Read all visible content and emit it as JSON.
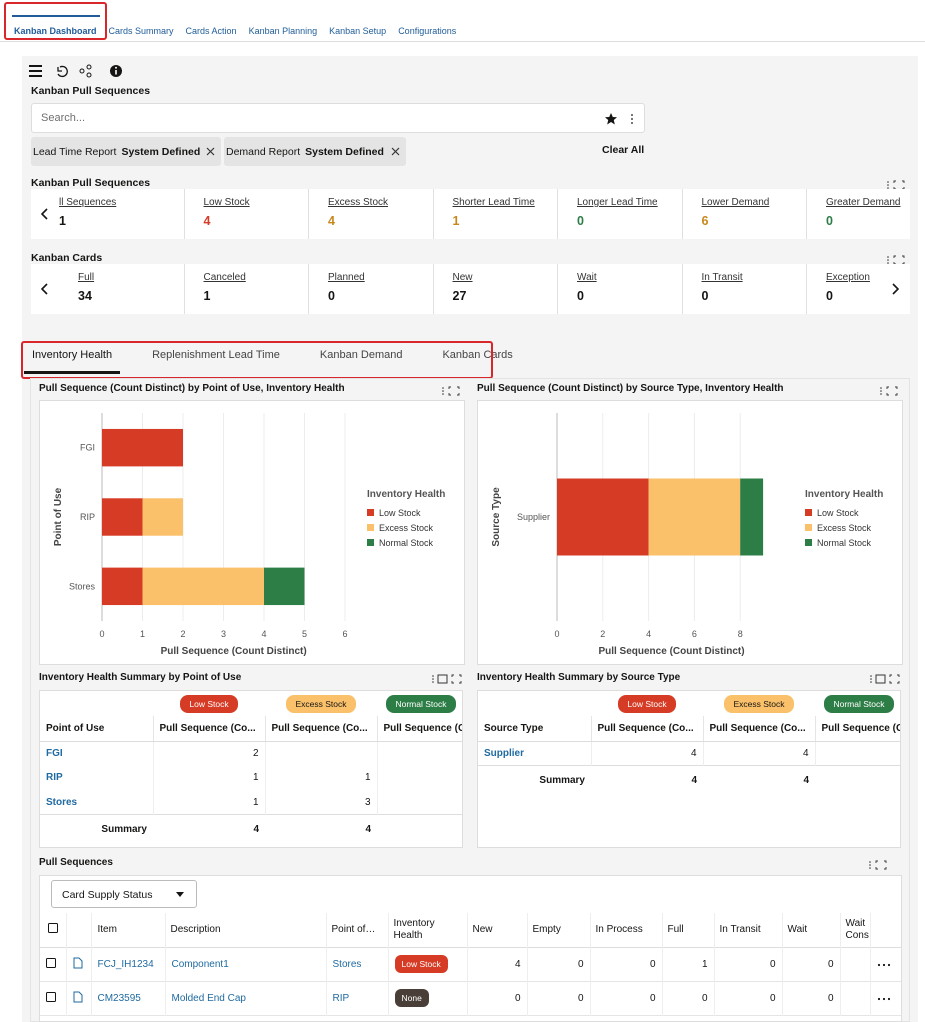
{
  "tabs": [
    "Kanban Dashboard",
    "Cards Summary",
    "Cards Action",
    "Kanban Planning",
    "Kanban Setup",
    "Configurations"
  ],
  "page_title": "Kanban Pull Sequences",
  "search_placeholder": "Search...",
  "filters": [
    {
      "label": "Lead Time Report",
      "value": "System Defined"
    },
    {
      "label": "Demand Report",
      "value": "System Defined"
    }
  ],
  "clear_all": "Clear All",
  "pull_sequences_summary": {
    "title": "Kanban Pull Sequences",
    "items": [
      {
        "label": "ll Sequences",
        "value": 1,
        "color": "#161513"
      },
      {
        "label": "Low Stock",
        "value": 4,
        "color": "#d63b25"
      },
      {
        "label": "Excess Stock",
        "value": 4,
        "color": "#c9871a"
      },
      {
        "label": "Shorter Lead Time",
        "value": 1,
        "color": "#c9871a"
      },
      {
        "label": "Longer Lead Time",
        "value": 0,
        "color": "#2d7d46"
      },
      {
        "label": "Lower Demand",
        "value": 6,
        "color": "#c9871a"
      },
      {
        "label": "Greater Demand",
        "value": 0,
        "color": "#2d7d46"
      }
    ]
  },
  "kanban_cards": {
    "title": "Kanban Cards",
    "items": [
      {
        "label": "Full",
        "value": 34
      },
      {
        "label": "Canceled",
        "value": 1
      },
      {
        "label": "Planned",
        "value": 0
      },
      {
        "label": "New",
        "value": 27
      },
      {
        "label": "Wait",
        "value": 0
      },
      {
        "label": "In Transit",
        "value": 0
      },
      {
        "label": "Exception",
        "value": 0
      }
    ]
  },
  "subtabs": [
    "Inventory Health",
    "Replenishment Lead Time",
    "Kanban Demand",
    "Kanban Cards"
  ],
  "chart_data": [
    {
      "type": "bar",
      "orientation": "horizontal",
      "stacked": true,
      "title": "Pull Sequence (Count Distinct) by Point of Use, Inventory Health",
      "x_label": "Pull Sequence (Count Distinct)",
      "y_label": "Point of Use",
      "legend_title": "Inventory Health",
      "grid": true,
      "categories": [
        "FGI",
        "RIP",
        "Stores"
      ],
      "series": [
        {
          "name": "Low Stock",
          "color": "#d63b25",
          "values": [
            2,
            1,
            1
          ]
        },
        {
          "name": "Excess Stock",
          "color": "#fac06a",
          "values": [
            null,
            1,
            3
          ]
        },
        {
          "name": "Normal Stock",
          "color": "#2d7d46",
          "values": [
            null,
            null,
            1
          ]
        }
      ],
      "xlim": [
        0,
        6.5
      ],
      "xticks": [
        0,
        1,
        2,
        3,
        4,
        5,
        6
      ]
    },
    {
      "type": "bar",
      "orientation": "horizontal",
      "stacked": true,
      "title": "Pull Sequence (Count Distinct) by Source Type, Inventory Health",
      "x_label": "Pull Sequence (Count Distinct)",
      "y_label": "Source Type",
      "legend_title": "Inventory Health",
      "grid": true,
      "categories": [
        "Supplier"
      ],
      "series": [
        {
          "name": "Low Stock",
          "color": "#d63b25",
          "values": [
            4
          ]
        },
        {
          "name": "Excess Stock",
          "color": "#fac06a",
          "values": [
            4
          ]
        },
        {
          "name": "Normal Stock",
          "color": "#2d7d46",
          "values": [
            1
          ]
        }
      ],
      "xlim": [
        0,
        10
      ],
      "xticks": [
        0,
        2,
        4,
        6,
        8
      ]
    }
  ],
  "summary_tables": [
    {
      "title": "Inventory Health Summary by Point of Use",
      "badges": [
        "Low Stock",
        "Excess Stock",
        "Normal Stock"
      ],
      "columns": [
        "Point of Use",
        "Pull Sequence (Co...",
        "Pull Sequence (Co...",
        "Pull Sequence (C"
      ],
      "rows": [
        [
          "FGI",
          2,
          null
        ],
        [
          "RIP",
          1,
          1
        ],
        [
          "Stores",
          1,
          3
        ]
      ],
      "summary_label": "Summary",
      "summary": [
        4,
        4
      ]
    },
    {
      "title": "Inventory Health Summary by Source Type",
      "badges": [
        "Low Stock",
        "Excess Stock",
        "Normal Stock"
      ],
      "columns": [
        "Source Type",
        "Pull Sequence (Co...",
        "Pull Sequence (Co...",
        "Pull Sequence (C"
      ],
      "rows": [
        [
          "Supplier",
          4,
          4
        ]
      ],
      "summary_label": "Summary",
      "summary": [
        4,
        4
      ]
    }
  ],
  "pull_sequences": {
    "title": "Pull Sequences",
    "dropdown": "Card Supply Status",
    "columns": [
      "Item",
      "Description",
      "Point of…",
      "Inventory Health",
      "New",
      "Empty",
      "In Process",
      "Full",
      "In Transit",
      "Wait",
      "Wait Cons"
    ],
    "rows": [
      [
        "FCJ_IH1234",
        "Component1",
        "Stores",
        "Low Stock",
        4,
        0,
        0,
        1,
        0,
        0
      ],
      [
        "CM23595",
        "Molded End Cap",
        "RIP",
        "None",
        0,
        0,
        0,
        0,
        0,
        0
      ]
    ]
  }
}
